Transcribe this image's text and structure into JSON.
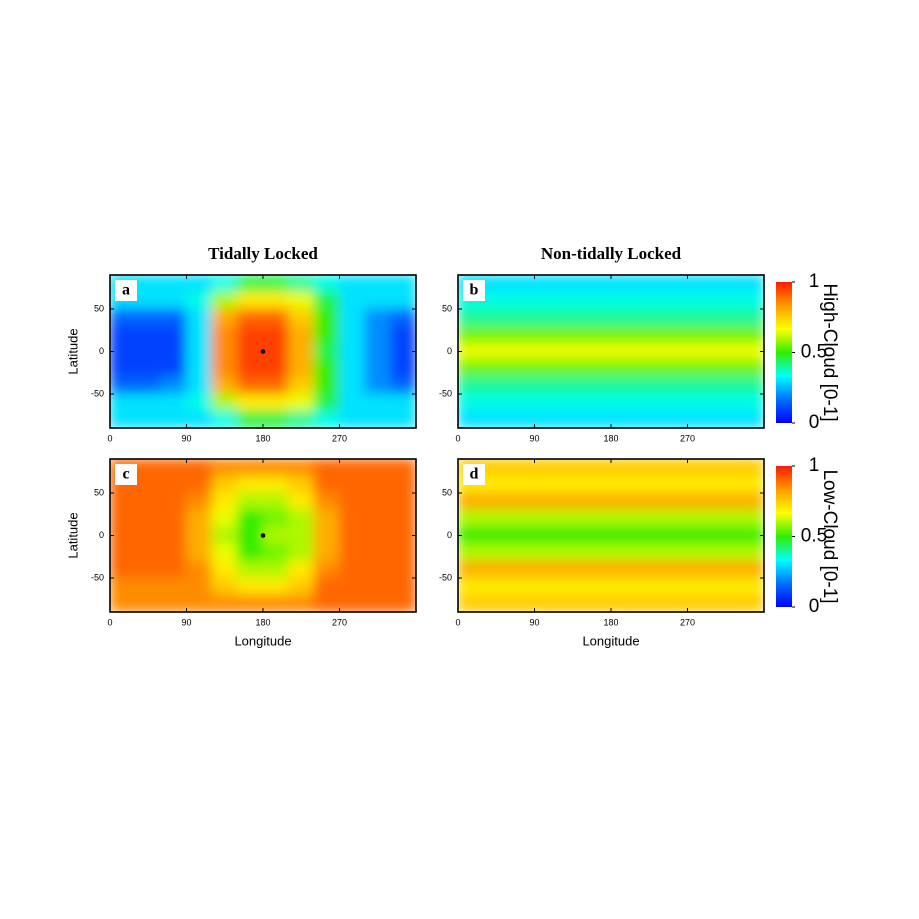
{
  "chart_data": [
    {
      "type": "heatmap",
      "panel": "a",
      "title": "Tidally Locked",
      "ylabel": "Latitude",
      "xlim": [
        0,
        360
      ],
      "xticks": [
        0,
        90,
        180,
        270
      ],
      "ylim": [
        -90,
        90
      ],
      "yticks": [
        -50,
        0,
        50
      ],
      "colormap": [
        "#0000ff",
        "#0070ff",
        "#00ffff",
        "#33ee00",
        "#ffff00",
        "#ff9900",
        "#ff1a00"
      ],
      "clim": [
        0,
        1
      ],
      "marker": {
        "x": 180,
        "y": 0
      },
      "lons": [
        15,
        45,
        75,
        105,
        135,
        165,
        195,
        225,
        255,
        285,
        315,
        345
      ],
      "lats": [
        80,
        60,
        40,
        20,
        0,
        -20,
        -40,
        -60,
        -80
      ],
      "values": [
        [
          0.3,
          0.3,
          0.3,
          0.3,
          0.35,
          0.45,
          0.45,
          0.4,
          0.35,
          0.3,
          0.3,
          0.3
        ],
        [
          0.3,
          0.3,
          0.3,
          0.35,
          0.6,
          0.7,
          0.7,
          0.65,
          0.45,
          0.3,
          0.3,
          0.3
        ],
        [
          0.15,
          0.15,
          0.15,
          0.3,
          0.8,
          0.9,
          0.9,
          0.75,
          0.5,
          0.3,
          0.2,
          0.15
        ],
        [
          0.1,
          0.1,
          0.1,
          0.3,
          0.85,
          0.95,
          0.95,
          0.8,
          0.5,
          0.3,
          0.2,
          0.1
        ],
        [
          0.1,
          0.1,
          0.1,
          0.3,
          0.85,
          0.95,
          0.95,
          0.8,
          0.45,
          0.3,
          0.2,
          0.1
        ],
        [
          0.1,
          0.1,
          0.1,
          0.3,
          0.85,
          0.95,
          0.95,
          0.8,
          0.5,
          0.3,
          0.2,
          0.1
        ],
        [
          0.15,
          0.15,
          0.2,
          0.3,
          0.8,
          0.9,
          0.9,
          0.75,
          0.5,
          0.3,
          0.2,
          0.15
        ],
        [
          0.3,
          0.3,
          0.3,
          0.35,
          0.6,
          0.7,
          0.7,
          0.65,
          0.45,
          0.3,
          0.3,
          0.3
        ],
        [
          0.3,
          0.3,
          0.3,
          0.3,
          0.35,
          0.45,
          0.45,
          0.4,
          0.35,
          0.3,
          0.3,
          0.3
        ]
      ]
    },
    {
      "type": "heatmap",
      "panel": "b",
      "title": "Non-tidally Locked",
      "xlim": [
        0,
        360
      ],
      "xticks": [
        0,
        90,
        180,
        270
      ],
      "ylim": [
        -90,
        90
      ],
      "yticks": [
        -50,
        0,
        50
      ],
      "colormap": [
        "#0000ff",
        "#0070ff",
        "#00ffff",
        "#33ee00",
        "#ffff00",
        "#ff9900",
        "#ff1a00"
      ],
      "clim": [
        0,
        1
      ],
      "colorbar": {
        "label": "High-Cloud [0-1]",
        "ticks": [
          0,
          0.5,
          1
        ]
      },
      "lons": [
        15,
        45,
        75,
        105,
        135,
        165,
        195,
        225,
        255,
        285,
        315,
        345
      ],
      "lats": [
        80,
        60,
        40,
        20,
        0,
        -20,
        -40,
        -60,
        -80
      ],
      "values": [
        [
          0.3,
          0.3,
          0.3,
          0.3,
          0.3,
          0.3,
          0.3,
          0.3,
          0.3,
          0.3,
          0.3,
          0.3
        ],
        [
          0.35,
          0.35,
          0.35,
          0.35,
          0.35,
          0.35,
          0.35,
          0.35,
          0.35,
          0.35,
          0.35,
          0.35
        ],
        [
          0.4,
          0.4,
          0.4,
          0.4,
          0.4,
          0.4,
          0.4,
          0.4,
          0.4,
          0.4,
          0.4,
          0.4
        ],
        [
          0.55,
          0.55,
          0.55,
          0.55,
          0.55,
          0.55,
          0.55,
          0.55,
          0.55,
          0.55,
          0.55,
          0.55
        ],
        [
          0.65,
          0.65,
          0.65,
          0.65,
          0.65,
          0.65,
          0.65,
          0.65,
          0.65,
          0.65,
          0.65,
          0.65
        ],
        [
          0.55,
          0.55,
          0.55,
          0.55,
          0.55,
          0.55,
          0.55,
          0.55,
          0.55,
          0.55,
          0.55,
          0.55
        ],
        [
          0.4,
          0.4,
          0.4,
          0.4,
          0.4,
          0.4,
          0.4,
          0.4,
          0.4,
          0.4,
          0.4,
          0.4
        ],
        [
          0.35,
          0.35,
          0.35,
          0.35,
          0.35,
          0.35,
          0.35,
          0.35,
          0.35,
          0.35,
          0.35,
          0.35
        ],
        [
          0.3,
          0.3,
          0.3,
          0.3,
          0.3,
          0.3,
          0.3,
          0.3,
          0.3,
          0.3,
          0.3,
          0.3
        ]
      ]
    },
    {
      "type": "heatmap",
      "panel": "c",
      "xlabel": "Longitude",
      "ylabel": "Latitude",
      "xlim": [
        0,
        360
      ],
      "xticks": [
        0,
        90,
        180,
        270
      ],
      "ylim": [
        -90,
        90
      ],
      "yticks": [
        -50,
        0,
        50
      ],
      "colormap": [
        "#0000ff",
        "#0070ff",
        "#00ffff",
        "#33ee00",
        "#ffff00",
        "#ff9900",
        "#ff1a00"
      ],
      "clim": [
        0,
        1
      ],
      "marker": {
        "x": 180,
        "y": 0
      },
      "lons": [
        15,
        45,
        75,
        105,
        135,
        165,
        195,
        225,
        255,
        285,
        315,
        345
      ],
      "lats": [
        80,
        60,
        40,
        20,
        0,
        -20,
        -40,
        -60,
        -80
      ],
      "values": [
        [
          0.9,
          0.9,
          0.9,
          0.9,
          0.85,
          0.85,
          0.85,
          0.85,
          0.9,
          0.9,
          0.9,
          0.9
        ],
        [
          0.9,
          0.9,
          0.9,
          0.9,
          0.75,
          0.7,
          0.7,
          0.75,
          0.9,
          0.9,
          0.9,
          0.9
        ],
        [
          0.9,
          0.9,
          0.9,
          0.85,
          0.7,
          0.6,
          0.6,
          0.7,
          0.85,
          0.9,
          0.9,
          0.9
        ],
        [
          0.9,
          0.9,
          0.9,
          0.8,
          0.65,
          0.5,
          0.55,
          0.6,
          0.8,
          0.9,
          0.9,
          0.9
        ],
        [
          0.9,
          0.9,
          0.9,
          0.8,
          0.6,
          0.5,
          0.6,
          0.6,
          0.8,
          0.9,
          0.9,
          0.9
        ],
        [
          0.9,
          0.9,
          0.9,
          0.8,
          0.65,
          0.5,
          0.55,
          0.6,
          0.8,
          0.9,
          0.9,
          0.9
        ],
        [
          0.9,
          0.9,
          0.9,
          0.85,
          0.7,
          0.6,
          0.6,
          0.7,
          0.85,
          0.9,
          0.9,
          0.9
        ],
        [
          0.85,
          0.85,
          0.85,
          0.85,
          0.75,
          0.7,
          0.7,
          0.75,
          0.9,
          0.9,
          0.9,
          0.9
        ],
        [
          0.85,
          0.85,
          0.85,
          0.85,
          0.85,
          0.85,
          0.85,
          0.85,
          0.9,
          0.9,
          0.9,
          0.9
        ]
      ]
    },
    {
      "type": "heatmap",
      "panel": "d",
      "xlabel": "Longitude",
      "xlim": [
        0,
        360
      ],
      "xticks": [
        0,
        90,
        180,
        270
      ],
      "ylim": [
        -90,
        90
      ],
      "yticks": [
        -50,
        0,
        50
      ],
      "colormap": [
        "#0000ff",
        "#0070ff",
        "#00ffff",
        "#33ee00",
        "#ffff00",
        "#ff9900",
        "#ff1a00"
      ],
      "clim": [
        0,
        1
      ],
      "colorbar": {
        "label": "Low-Cloud [0-1]",
        "ticks": [
          0,
          0.5,
          1
        ]
      },
      "lons": [
        15,
        45,
        75,
        105,
        135,
        165,
        195,
        225,
        255,
        285,
        315,
        345
      ],
      "lats": [
        80,
        60,
        40,
        20,
        0,
        -20,
        -40,
        -60,
        -80
      ],
      "values": [
        [
          0.75,
          0.75,
          0.75,
          0.75,
          0.75,
          0.75,
          0.75,
          0.75,
          0.75,
          0.75,
          0.75,
          0.75
        ],
        [
          0.7,
          0.7,
          0.7,
          0.7,
          0.7,
          0.7,
          0.7,
          0.7,
          0.7,
          0.7,
          0.7,
          0.7
        ],
        [
          0.8,
          0.8,
          0.8,
          0.8,
          0.8,
          0.8,
          0.8,
          0.8,
          0.8,
          0.8,
          0.8,
          0.8
        ],
        [
          0.6,
          0.6,
          0.6,
          0.6,
          0.6,
          0.6,
          0.6,
          0.6,
          0.6,
          0.6,
          0.6,
          0.6
        ],
        [
          0.5,
          0.5,
          0.5,
          0.5,
          0.5,
          0.5,
          0.5,
          0.5,
          0.5,
          0.5,
          0.5,
          0.5
        ],
        [
          0.6,
          0.6,
          0.6,
          0.6,
          0.6,
          0.6,
          0.6,
          0.6,
          0.6,
          0.6,
          0.6,
          0.6
        ],
        [
          0.8,
          0.8,
          0.8,
          0.8,
          0.8,
          0.8,
          0.8,
          0.8,
          0.8,
          0.8,
          0.8,
          0.8
        ],
        [
          0.7,
          0.7,
          0.7,
          0.7,
          0.7,
          0.7,
          0.7,
          0.7,
          0.7,
          0.7,
          0.7,
          0.7
        ],
        [
          0.75,
          0.75,
          0.75,
          0.75,
          0.75,
          0.75,
          0.75,
          0.75,
          0.75,
          0.75,
          0.75,
          0.75
        ]
      ]
    }
  ]
}
